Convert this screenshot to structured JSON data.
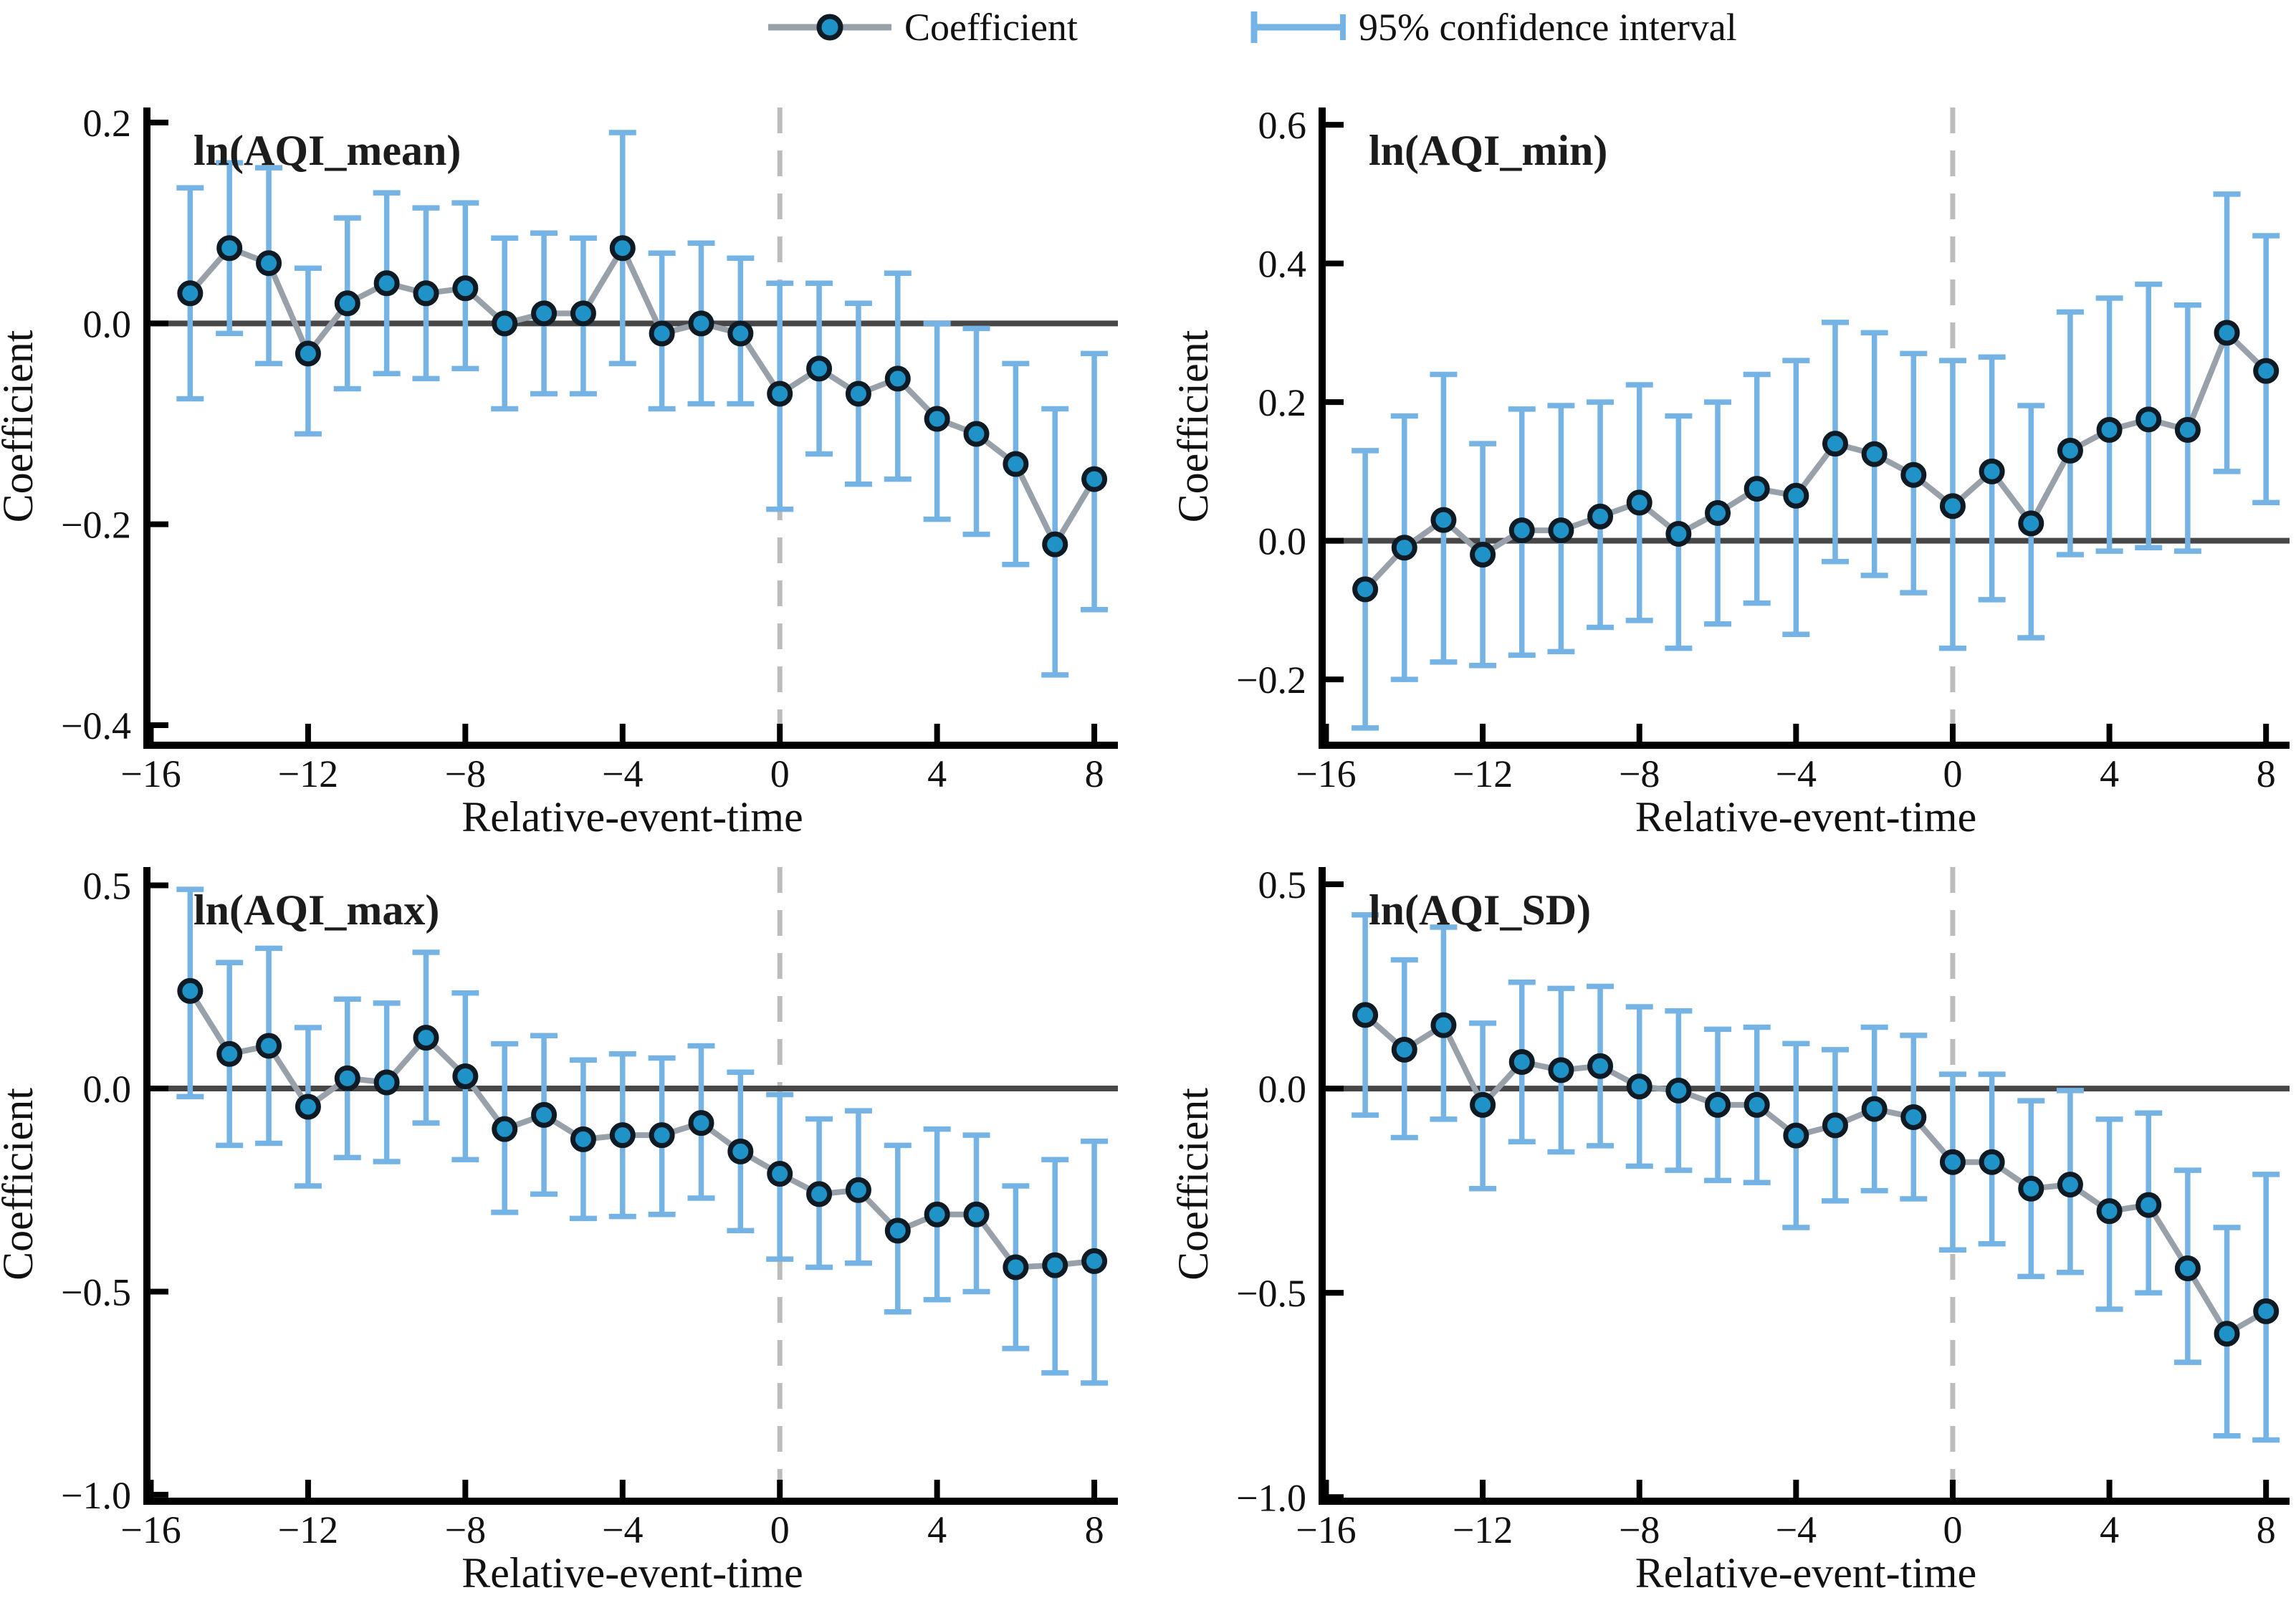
{
  "figure": {
    "background": "#ffffff",
    "legend": {
      "coefficient_label": "Coefficient",
      "ci_label": "95% confidence interval"
    },
    "colors": {
      "marker_fill": "#1f93c8",
      "marker_edge": "#0e1a24",
      "series_line": "#98a0aa",
      "ci_bar": "#74b3e4",
      "zero_line": "#474747",
      "event_dashed_line": "#bcbcbc",
      "axis": "#000000",
      "text": "#111111"
    }
  },
  "chart_data": {
    "type": "line",
    "layout": "2x2 panel grid, error-bar event-study plots",
    "x_label": "Relative-event-time",
    "y_label": "Coefficient",
    "x_ticks": [
      -16,
      -12,
      -8,
      -4,
      0,
      4,
      8
    ],
    "xlim": [
      -16.1,
      8.6
    ],
    "event_line_x": 0,
    "zero_reference_y": 0,
    "grid": "off",
    "legend_position": "top-center",
    "x": [
      -15,
      -14,
      -13,
      -12,
      -11,
      -10,
      -9,
      -8,
      -7,
      -6,
      -5,
      -4,
      -3,
      -2,
      -1,
      0,
      1,
      2,
      3,
      4,
      5,
      6,
      7,
      8
    ],
    "panels": [
      {
        "title": "ln(AQI_mean)",
        "y_ticks": [
          0.2,
          0.0,
          -0.2,
          -0.4
        ],
        "ylim": [
          -0.42,
          0.215
        ],
        "coef": [
          0.03,
          0.075,
          0.06,
          -0.03,
          0.02,
          0.04,
          0.03,
          0.035,
          0.0,
          0.01,
          0.01,
          0.075,
          -0.01,
          0.0,
          -0.01,
          -0.07,
          -0.045,
          -0.07,
          -0.055,
          -0.095,
          -0.11,
          -0.14,
          -0.22,
          -0.155
        ],
        "ci_low": [
          -0.075,
          -0.01,
          -0.04,
          -0.11,
          -0.065,
          -0.05,
          -0.055,
          -0.045,
          -0.085,
          -0.07,
          -0.07,
          -0.04,
          -0.085,
          -0.08,
          -0.08,
          -0.185,
          -0.13,
          -0.16,
          -0.155,
          -0.195,
          -0.21,
          -0.24,
          -0.35,
          -0.285
        ],
        "ci_high": [
          0.135,
          0.16,
          0.155,
          0.055,
          0.105,
          0.13,
          0.115,
          0.12,
          0.085,
          0.09,
          0.085,
          0.19,
          0.07,
          0.08,
          0.065,
          0.04,
          0.04,
          0.02,
          0.05,
          0.0,
          -0.005,
          -0.04,
          -0.085,
          -0.03
        ]
      },
      {
        "title": "ln(AQI_min)",
        "y_ticks": [
          0.6,
          0.4,
          0.2,
          0.0,
          -0.2
        ],
        "ylim": [
          -0.295,
          0.625
        ],
        "coef": [
          -0.07,
          -0.01,
          0.03,
          -0.02,
          0.015,
          0.015,
          0.035,
          0.055,
          0.01,
          0.04,
          0.075,
          0.065,
          0.14,
          0.125,
          0.095,
          0.05,
          0.1,
          0.025,
          0.13,
          0.16,
          0.175,
          0.16,
          0.3,
          0.245
        ],
        "ci_low": [
          -0.27,
          -0.2,
          -0.175,
          -0.18,
          -0.165,
          -0.16,
          -0.125,
          -0.115,
          -0.155,
          -0.12,
          -0.09,
          -0.135,
          -0.03,
          -0.05,
          -0.075,
          -0.155,
          -0.085,
          -0.14,
          -0.02,
          -0.015,
          -0.01,
          -0.015,
          0.1,
          0.055
        ],
        "ci_high": [
          0.13,
          0.18,
          0.24,
          0.14,
          0.19,
          0.195,
          0.2,
          0.225,
          0.18,
          0.2,
          0.24,
          0.26,
          0.315,
          0.3,
          0.27,
          0.26,
          0.265,
          0.195,
          0.33,
          0.35,
          0.37,
          0.34,
          0.5,
          0.44
        ]
      },
      {
        "title": "ln(AQI_max)",
        "y_ticks": [
          0.5,
          0.0,
          -0.5,
          -1.0
        ],
        "ylim": [
          -1.016,
          0.545
        ],
        "coef": [
          0.24,
          0.085,
          0.105,
          -0.045,
          0.025,
          0.015,
          0.125,
          0.03,
          -0.1,
          -0.065,
          -0.125,
          -0.115,
          -0.115,
          -0.085,
          -0.155,
          -0.21,
          -0.26,
          -0.25,
          -0.35,
          -0.31,
          -0.31,
          -0.44,
          -0.435,
          -0.425
        ],
        "ci_low": [
          -0.02,
          -0.14,
          -0.135,
          -0.24,
          -0.17,
          -0.18,
          -0.085,
          -0.175,
          -0.305,
          -0.26,
          -0.32,
          -0.315,
          -0.31,
          -0.27,
          -0.35,
          -0.42,
          -0.44,
          -0.43,
          -0.55,
          -0.52,
          -0.5,
          -0.64,
          -0.7,
          -0.725
        ],
        "ci_high": [
          0.49,
          0.31,
          0.345,
          0.15,
          0.22,
          0.21,
          0.335,
          0.235,
          0.11,
          0.13,
          0.07,
          0.085,
          0.075,
          0.105,
          0.04,
          -0.015,
          -0.075,
          -0.055,
          -0.14,
          -0.1,
          -0.115,
          -0.24,
          -0.175,
          -0.13
        ]
      },
      {
        "title": "ln(AQI_SD)",
        "y_ticks": [
          0.5,
          0.0,
          -0.5,
          -1.0
        ],
        "ylim": [
          -1.01,
          0.542
        ],
        "coef": [
          0.18,
          0.095,
          0.155,
          -0.04,
          0.065,
          0.045,
          0.055,
          0.005,
          -0.005,
          -0.04,
          -0.04,
          -0.115,
          -0.09,
          -0.05,
          -0.07,
          -0.18,
          -0.18,
          -0.245,
          -0.235,
          -0.3,
          -0.285,
          -0.44,
          -0.6,
          -0.545
        ],
        "ci_low": [
          -0.065,
          -0.12,
          -0.075,
          -0.245,
          -0.13,
          -0.155,
          -0.14,
          -0.19,
          -0.2,
          -0.225,
          -0.23,
          -0.34,
          -0.275,
          -0.25,
          -0.27,
          -0.395,
          -0.38,
          -0.46,
          -0.45,
          -0.54,
          -0.5,
          -0.67,
          -0.85,
          -0.86
        ],
        "ci_high": [
          0.425,
          0.315,
          0.395,
          0.16,
          0.26,
          0.245,
          0.25,
          0.2,
          0.19,
          0.145,
          0.15,
          0.11,
          0.095,
          0.15,
          0.13,
          0.035,
          0.035,
          -0.03,
          -0.005,
          -0.075,
          -0.06,
          -0.2,
          -0.34,
          -0.21
        ]
      }
    ]
  }
}
